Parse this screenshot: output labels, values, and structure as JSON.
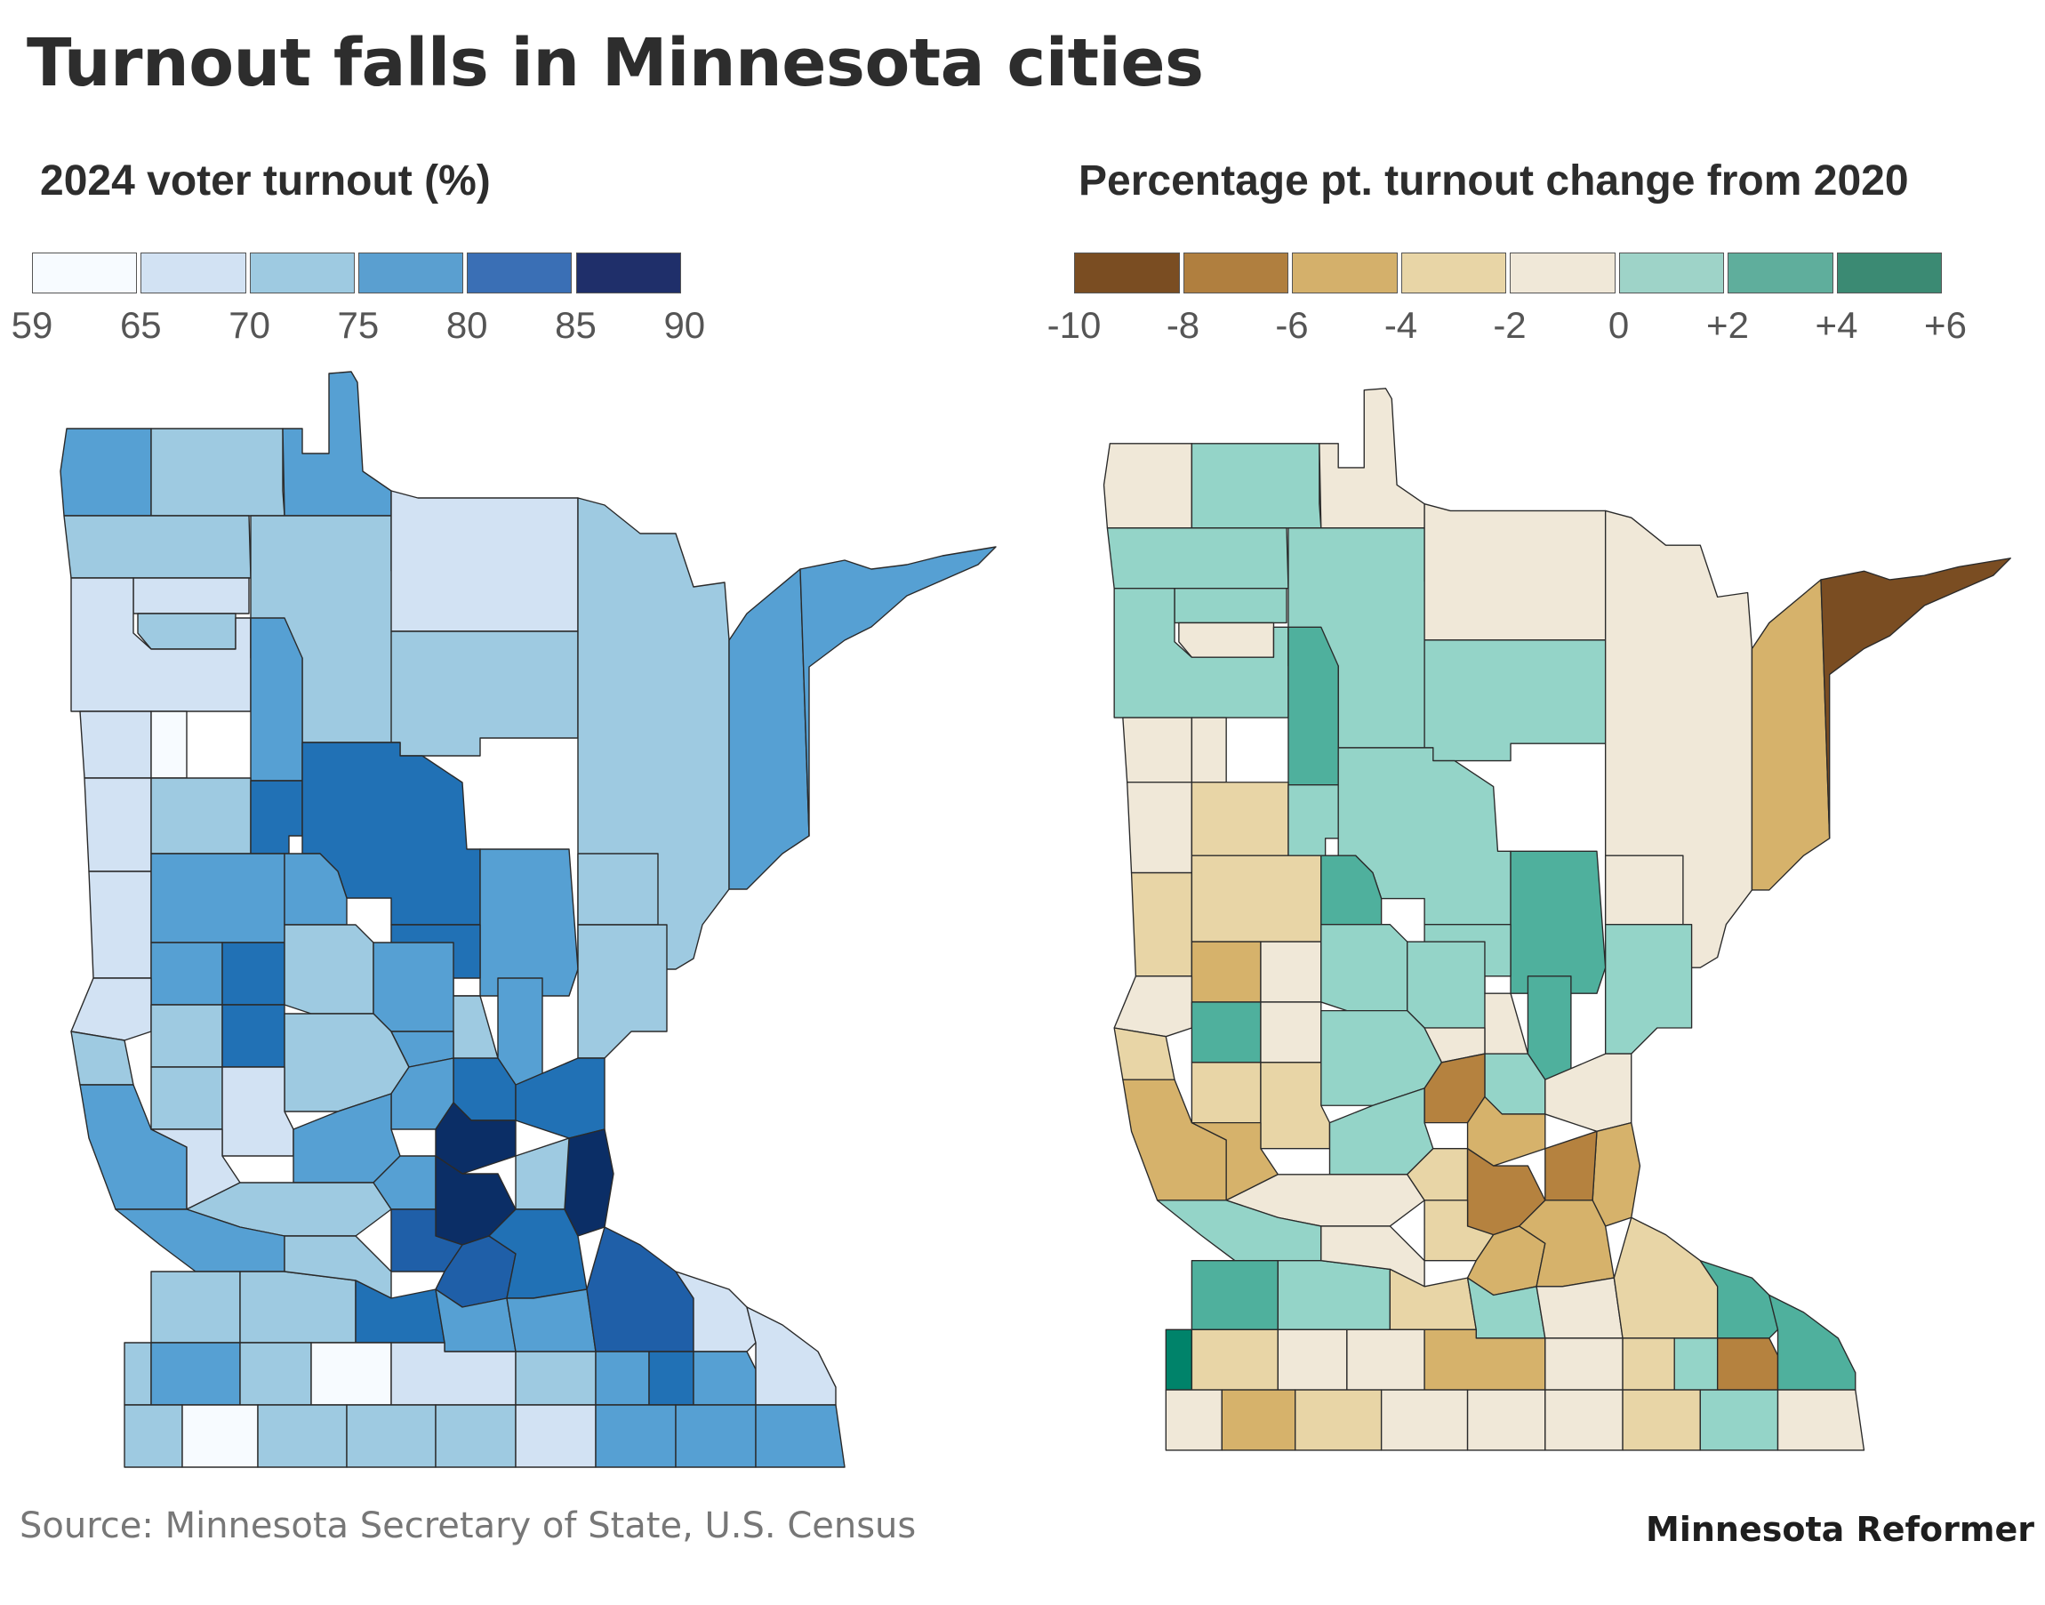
{
  "title": "Turnout falls in Minnesota cities",
  "left_map": {
    "heading": "2024 voter turnout (%)",
    "legend": {
      "ticks": [
        "59",
        "65",
        "70",
        "75",
        "80",
        "85",
        "90"
      ],
      "colors": [
        "#f7fbff",
        "#d2e2f3",
        "#9ecae1",
        "#5a9fd0",
        "#3a6fb5",
        "#1f2f6a"
      ]
    }
  },
  "right_map": {
    "heading": "Percentage pt. turnout change from 2020",
    "legend": {
      "ticks": [
        "-10",
        "-8",
        "-6",
        "-4",
        "-2",
        "0",
        "+2",
        "+4",
        "+6"
      ],
      "colors": [
        "#7a4d22",
        "#b07f3f",
        "#d4b06b",
        "#e8d5a6",
        "#f0e8d8",
        "#9ed3c8",
        "#5fae9c",
        "#3b8a73"
      ]
    }
  },
  "map_colors": {
    "left": {
      "c59": "#f7fbff",
      "c65": "#d2e2f3",
      "c70": "#9ecae1",
      "c75": "#56a0d3",
      "c80": "#2171b5",
      "c85": "#1f5fa8",
      "c90": "#0b2e66"
    },
    "right": {
      "dn10": "#7a4d22",
      "dn8": "#b5823f",
      "dn6": "#d6b26b",
      "dn4": "#e8d5a6",
      "dn2": "#f0e8d8",
      "up0": "#94d4c8",
      "up2": "#4fb09d",
      "up4": "#3f9f86",
      "up6": "#00836a"
    }
  },
  "footer": {
    "source": "Source: Minnesota Secretary of State, U.S. Census",
    "brand": "Minnesota Reformer"
  }
}
